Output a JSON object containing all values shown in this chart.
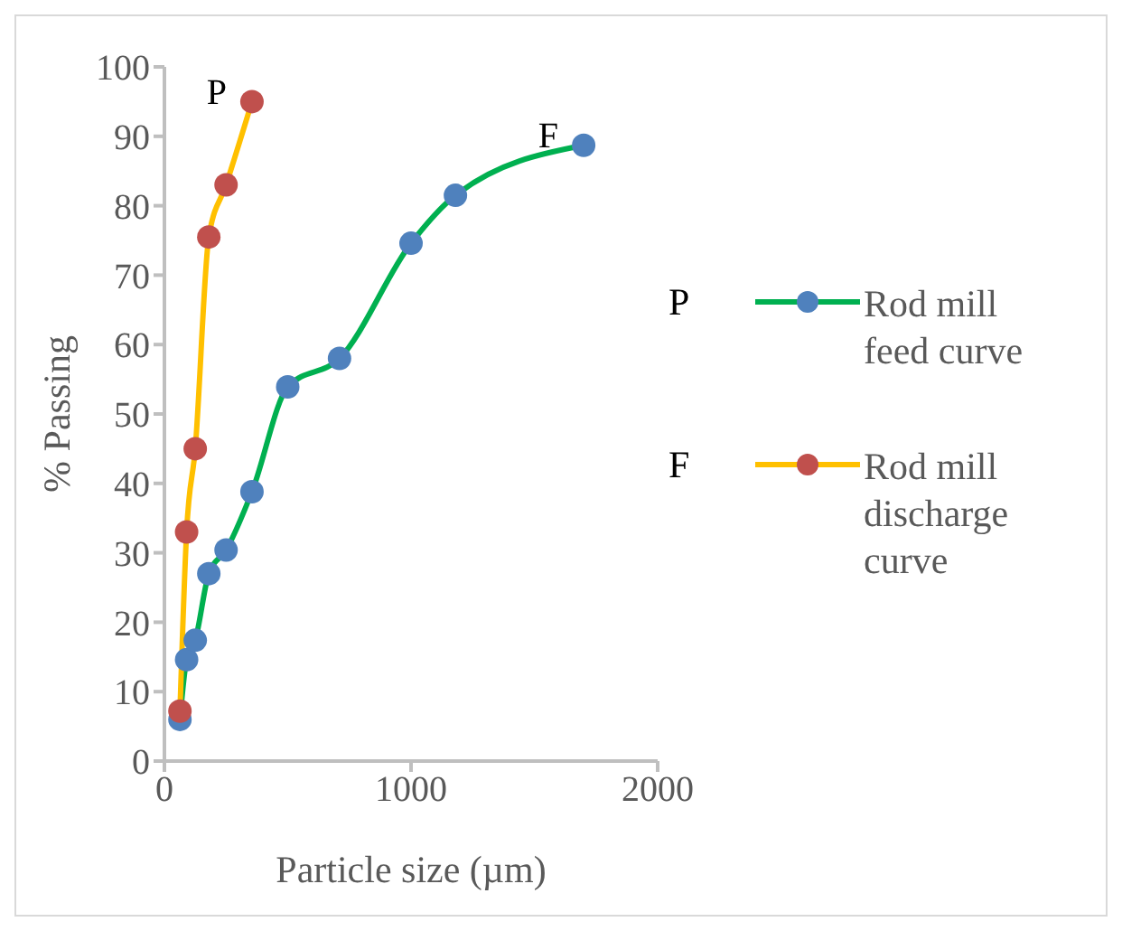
{
  "chart_data": {
    "type": "line",
    "xlabel": "Particle size (µm)",
    "ylabel": "% Passing",
    "xlim": [
      0,
      2000
    ],
    "xticks": [
      0,
      1000,
      2000
    ],
    "ylim": [
      0,
      100
    ],
    "yticks": [
      0,
      10,
      20,
      30,
      40,
      50,
      60,
      70,
      80,
      90,
      100
    ],
    "legend": "right",
    "marker": "circle",
    "line_style": "solid",
    "series": [
      {
        "name": "Rod mill feed curve",
        "color": "#00b050",
        "colors": [
          "#4f81bd",
          "#4f81bd",
          "#4f81bd",
          "#4f81bd",
          "#4f81bd",
          "#4f81bd",
          "#4f81bd",
          "#4f81bd",
          "#4f81bd",
          "#4f81bd",
          "#4f81bd"
        ],
        "x": [
          63,
          90,
          125,
          180,
          250,
          355,
          500,
          710,
          1000,
          1180,
          1700
        ],
        "values": [
          6,
          14.6,
          17.4,
          27,
          30.4,
          38.8,
          53.9,
          58,
          74.6,
          81.5,
          88.7
        ]
      },
      {
        "name": "Rod mill discharge curve",
        "color": "#ffc000",
        "colors": [
          "#c0504d",
          "#c0504d",
          "#c0504d",
          "#c0504d",
          "#c0504d",
          "#c0504d"
        ],
        "x": [
          63,
          90,
          125,
          180,
          250,
          355
        ],
        "values": [
          7.2,
          33,
          45,
          75.5,
          83,
          95
        ]
      }
    ],
    "annotations": [
      "P",
      "F",
      "P",
      "F"
    ]
  }
}
